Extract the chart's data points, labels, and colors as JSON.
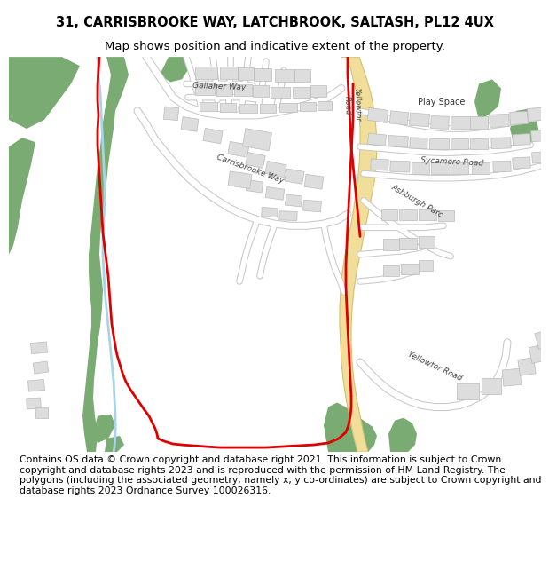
{
  "title_line1": "31, CARRISBROOKE WAY, LATCHBROOK, SALTASH, PL12 4UX",
  "title_line2": "Map shows position and indicative extent of the property.",
  "footer_text": "Contains OS data © Crown copyright and database right 2021. This information is subject to Crown copyright and database rights 2023 and is reproduced with the permission of HM Land Registry. The polygons (including the associated geometry, namely x, y co-ordinates) are subject to Crown copyright and database rights 2023 Ordnance Survey 100026316.",
  "title_fontsize": 10.5,
  "subtitle_fontsize": 9.5,
  "footer_fontsize": 7.8,
  "bg_color": "#ffffff",
  "green_color": "#7aab72",
  "road_color": "#f0de9a",
  "red_line_color": "#dd0000",
  "blue_line_color": "#a8d4e8",
  "building_color": "#dddddd",
  "building_edge": "#bbbbbb",
  "map_bg": "#f5f4f2"
}
